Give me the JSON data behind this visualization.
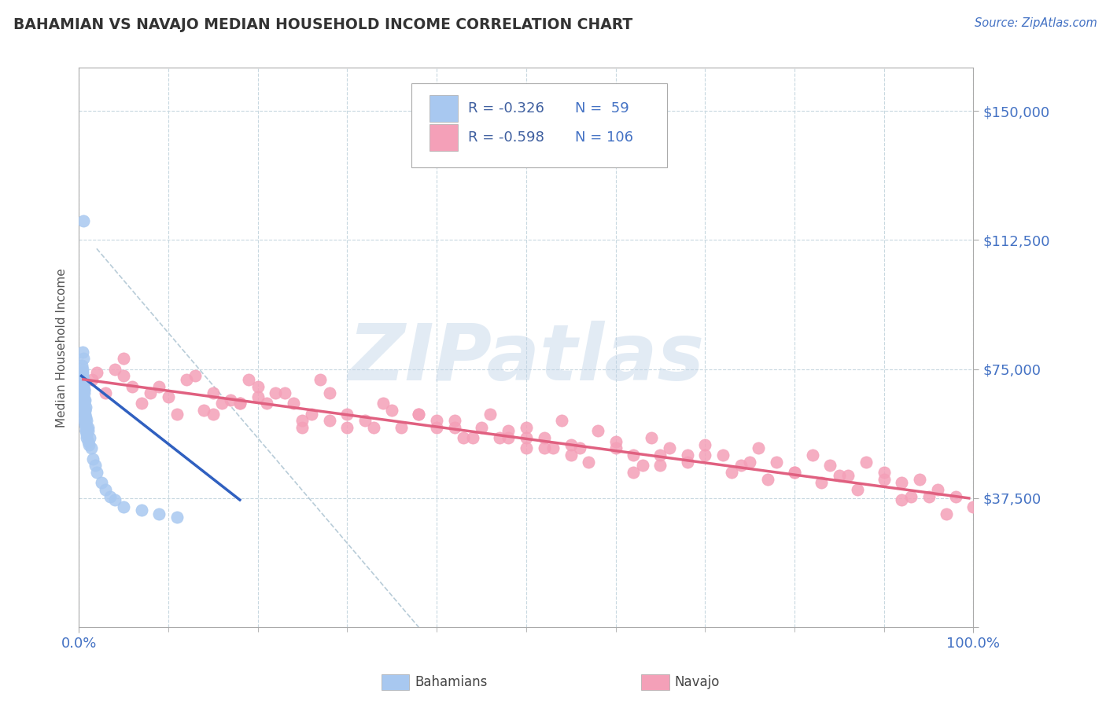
{
  "title": "BAHAMIAN VS NAVAJO MEDIAN HOUSEHOLD INCOME CORRELATION CHART",
  "source_text": "Source: ZipAtlas.com",
  "ylabel": "Median Household Income",
  "yticks": [
    0,
    37500,
    75000,
    112500,
    150000
  ],
  "ytick_labels": [
    "",
    "$37,500",
    "$75,000",
    "$112,500",
    "$150,000"
  ],
  "xlim": [
    0,
    100
  ],
  "ylim": [
    0,
    162500
  ],
  "watermark": "ZIPatlas",
  "bahamian_color": "#a8c8f0",
  "navajo_color": "#f4a0b8",
  "bahamian_line_color": "#3060c0",
  "navajo_line_color": "#e06080",
  "dashed_line_color": "#b8ccd8",
  "legend_r_color": "#4060a0",
  "legend_n_color": "#4472c4",
  "legend_text_color": "#333333",
  "background_color": "#ffffff",
  "grid_color": "#c8d8e0",
  "tick_color": "#4472c4",
  "title_color": "#333333",
  "source_color": "#4472c4",
  "watermark_color": "#c0d4e8",
  "watermark_alpha": 0.45,
  "bahamian_line_x0": 0.3,
  "bahamian_line_x1": 18.0,
  "bahamian_line_y0": 73000,
  "bahamian_line_y1": 37000,
  "navajo_line_x0": 0.5,
  "navajo_line_x1": 99.5,
  "navajo_line_y0": 72000,
  "navajo_line_y1": 37500,
  "dashed_line_x0": 2,
  "dashed_line_x1": 38,
  "dashed_line_y0": 110000,
  "dashed_line_y1": 0,
  "bahamian_x": [
    0.2,
    0.3,
    0.4,
    0.5,
    0.3,
    0.4,
    0.5,
    0.6,
    0.4,
    0.5,
    0.6,
    0.7,
    0.3,
    0.4,
    0.5,
    0.6,
    0.5,
    0.6,
    0.7,
    0.8,
    0.4,
    0.5,
    0.6,
    0.7,
    0.6,
    0.7,
    0.8,
    0.9,
    0.5,
    0.6,
    0.7,
    0.8,
    0.7,
    0.8,
    0.9,
    1.0,
    0.6,
    0.7,
    0.8,
    0.9,
    0.8,
    0.9,
    1.0,
    1.1,
    1.0,
    1.2,
    1.4,
    1.6,
    1.8,
    2.0,
    2.5,
    3.0,
    3.5,
    4.0,
    5.0,
    7.0,
    9.0,
    11.0,
    0.5
  ],
  "bahamian_y": [
    65000,
    68000,
    62000,
    70000,
    72000,
    75000,
    66000,
    60000,
    74000,
    78000,
    69000,
    63000,
    76000,
    80000,
    72000,
    66000,
    70000,
    64000,
    60000,
    57000,
    73000,
    67000,
    63000,
    59000,
    68000,
    62000,
    58000,
    55000,
    71000,
    65000,
    61000,
    57000,
    66000,
    61000,
    58000,
    54000,
    69000,
    63000,
    59000,
    56000,
    64000,
    60000,
    57000,
    53000,
    58000,
    55000,
    52000,
    49000,
    47000,
    45000,
    42000,
    40000,
    38000,
    37000,
    35000,
    34000,
    33000,
    32000,
    118000
  ],
  "navajo_x": [
    1.5,
    3.0,
    5.0,
    7.0,
    9.0,
    11.0,
    13.0,
    15.0,
    17.0,
    19.0,
    21.0,
    23.0,
    25.0,
    27.0,
    4.0,
    8.0,
    12.0,
    16.0,
    20.0,
    24.0,
    28.0,
    30.0,
    32.0,
    34.0,
    36.0,
    38.0,
    40.0,
    42.0,
    44.0,
    46.0,
    48.0,
    50.0,
    52.0,
    54.0,
    56.0,
    58.0,
    60.0,
    62.0,
    64.0,
    66.0,
    68.0,
    70.0,
    72.0,
    74.0,
    76.0,
    78.0,
    80.0,
    82.0,
    84.0,
    86.0,
    88.0,
    90.0,
    92.0,
    94.0,
    96.0,
    98.0,
    6.0,
    14.0,
    22.0,
    35.0,
    45.0,
    55.0,
    65.0,
    75.0,
    85.0,
    95.0,
    10.0,
    18.0,
    26.0,
    33.0,
    43.0,
    53.0,
    63.0,
    73.0,
    83.0,
    93.0,
    2.0,
    20.0,
    40.0,
    60.0,
    80.0,
    100.0,
    15.0,
    25.0,
    50.0,
    70.0,
    90.0,
    5.0,
    30.0,
    50.0,
    55.0,
    65.0,
    38.0,
    42.0,
    47.0,
    52.0,
    57.0,
    62.0,
    77.0,
    87.0,
    92.0,
    97.0,
    18.0,
    28.0,
    48.0,
    68.0
  ],
  "navajo_y": [
    72000,
    68000,
    78000,
    65000,
    70000,
    62000,
    73000,
    68000,
    66000,
    72000,
    65000,
    68000,
    58000,
    72000,
    75000,
    68000,
    72000,
    65000,
    70000,
    65000,
    68000,
    62000,
    60000,
    65000,
    58000,
    62000,
    58000,
    60000,
    55000,
    62000,
    57000,
    58000,
    55000,
    60000,
    52000,
    57000,
    54000,
    50000,
    55000,
    52000,
    48000,
    53000,
    50000,
    47000,
    52000,
    48000,
    45000,
    50000,
    47000,
    44000,
    48000,
    45000,
    42000,
    43000,
    40000,
    38000,
    70000,
    63000,
    68000,
    63000,
    58000,
    53000,
    50000,
    48000,
    44000,
    38000,
    67000,
    65000,
    62000,
    58000,
    55000,
    52000,
    47000,
    45000,
    42000,
    38000,
    74000,
    67000,
    60000,
    52000,
    45000,
    35000,
    62000,
    60000,
    55000,
    50000,
    43000,
    73000,
    58000,
    52000,
    50000,
    47000,
    62000,
    58000,
    55000,
    52000,
    48000,
    45000,
    43000,
    40000,
    37000,
    33000,
    65000,
    60000,
    55000,
    50000
  ]
}
